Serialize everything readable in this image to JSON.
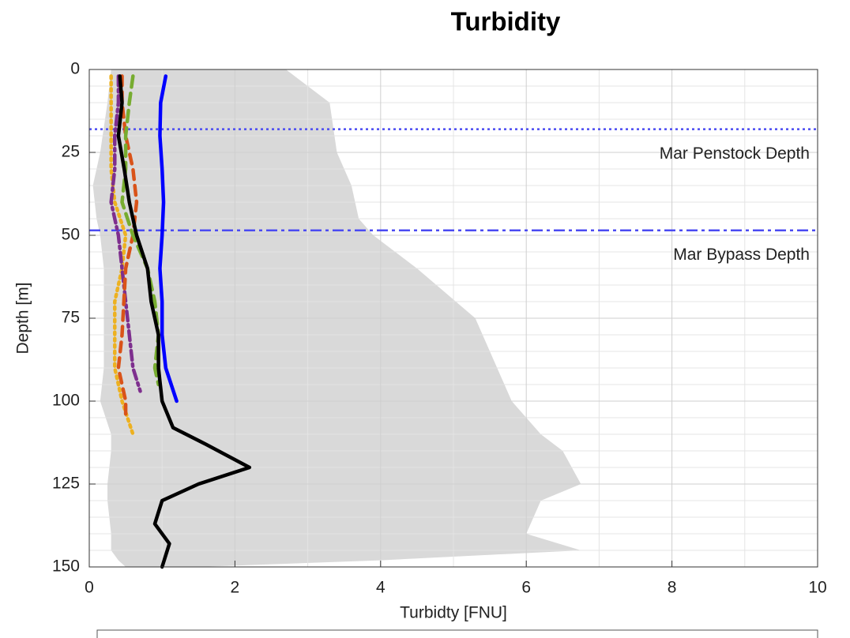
{
  "chart_data": {
    "type": "line",
    "title": "Turbidity",
    "x_label": "Turbidty [FNU]",
    "y_label": "Depth [m]",
    "xlim": [
      0,
      10
    ],
    "xticks": [
      0,
      2,
      4,
      6,
      8,
      10
    ],
    "ylim": [
      0,
      150
    ],
    "yticks": [
      0,
      25,
      50,
      75,
      100,
      125,
      150
    ],
    "y_reversed": true,
    "grid": true,
    "minor_grid": true,
    "range": {
      "color": "#d9d9d9",
      "depth": [
        0,
        10,
        25,
        35,
        45,
        50,
        60,
        75,
        90,
        100,
        110,
        115,
        125,
        130,
        140,
        145,
        148,
        150
      ],
      "min": [
        0.3,
        0.25,
        0.15,
        0.05,
        0.1,
        0.15,
        0.2,
        0.2,
        0.2,
        0.15,
        0.3,
        0.3,
        0.25,
        0.25,
        0.3,
        0.3,
        0.4,
        0.5
      ],
      "max": [
        2.7,
        3.3,
        3.4,
        3.6,
        3.7,
        3.9,
        4.5,
        5.3,
        5.6,
        5.8,
        6.2,
        6.5,
        6.75,
        6.2,
        6.0,
        6.75,
        4.0,
        1.5
      ]
    },
    "ref_lines": [
      {
        "value": 18,
        "label": "Mar Penstock Depth",
        "color": "#4b4bf2",
        "dash": "3 4"
      },
      {
        "value": 48.5,
        "label": "Mar Bypass Depth",
        "color": "#4b4bf2",
        "dash": "14 5 4 5"
      }
    ],
    "series": [
      {
        "color": "#edb120",
        "dash": "3 5",
        "values": [
          0.3,
          0.3,
          0.3,
          0.3,
          0.35,
          0.5,
          0.45,
          0.35,
          0.35,
          0.35,
          0.45,
          0.6
        ],
        "depth": [
          2,
          10,
          20,
          30,
          40,
          50,
          60,
          70,
          80,
          90,
          100,
          110
        ]
      },
      {
        "color": "#7e2f8e",
        "dash": "12 5 3 5",
        "values": [
          0.4,
          0.4,
          0.35,
          0.35,
          0.3,
          0.4,
          0.45,
          0.5,
          0.55,
          0.6,
          0.7
        ],
        "depth": [
          2,
          10,
          20,
          30,
          40,
          50,
          60,
          70,
          80,
          90,
          97
        ]
      },
      {
        "color": "#d95319",
        "dash": "12 8",
        "values": [
          0.45,
          0.45,
          0.5,
          0.6,
          0.65,
          0.6,
          0.5,
          0.45,
          0.4,
          0.5,
          0.5
        ],
        "depth": [
          2,
          10,
          20,
          30,
          40,
          50,
          60,
          80,
          90,
          100,
          105
        ]
      },
      {
        "color": "#77ac30",
        "dash": "14 8",
        "values": [
          0.6,
          0.55,
          0.5,
          0.5,
          0.45,
          0.6,
          0.8,
          0.9,
          0.95,
          0.9,
          0.95
        ],
        "depth": [
          2,
          10,
          20,
          30,
          40,
          50,
          60,
          70,
          80,
          90,
          95
        ]
      },
      {
        "color": "#0000ff",
        "dash": "",
        "values": [
          1.05,
          0.98,
          0.97,
          1.0,
          1.02,
          1.0,
          0.97,
          1.0,
          1.0,
          1.05,
          1.2
        ],
        "depth": [
          2,
          10,
          20,
          30,
          40,
          50,
          60,
          70,
          80,
          90,
          100
        ]
      },
      {
        "color": "#000000",
        "dash": "",
        "values": [
          0.42,
          0.45,
          0.4,
          0.48,
          0.55,
          0.65,
          0.8,
          0.85,
          0.95,
          0.95,
          1.0,
          1.15,
          1.6,
          2.2,
          1.5,
          1.0,
          0.9,
          1.1,
          1.0
        ],
        "depth": [
          2,
          10,
          20,
          30,
          40,
          50,
          60,
          70,
          80,
          90,
          100,
          108,
          113,
          120,
          125,
          130,
          137,
          143,
          150
        ]
      }
    ]
  }
}
